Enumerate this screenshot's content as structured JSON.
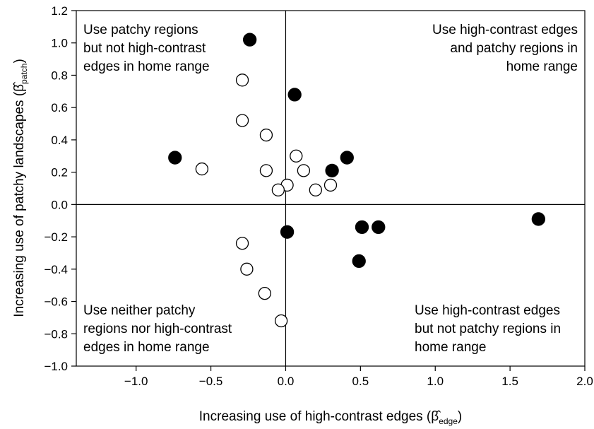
{
  "chart_data": {
    "type": "scatter",
    "title": "",
    "xlabel": {
      "prefix": "Increasing use of high-contrast edges (",
      "symbol": "β̂",
      "subscript": "edge",
      "suffix": ")"
    },
    "ylabel": {
      "prefix": "Increasing use of patchy landscapes (",
      "symbol": "β̂",
      "subscript": "patch",
      "suffix": ")"
    },
    "xlim": [
      -1.4,
      2.0
    ],
    "ylim": [
      -1.0,
      1.2
    ],
    "xticks": [
      -1.0,
      -0.5,
      0.0,
      0.5,
      1.0,
      1.5,
      2.0
    ],
    "xtick_labels": [
      "−1.0",
      "−0.5",
      "0.0",
      "0.5",
      "1.0",
      "1.5",
      "2.0"
    ],
    "yticks": [
      -1.0,
      -0.8,
      -0.6,
      -0.4,
      -0.2,
      0.0,
      0.2,
      0.4,
      0.6,
      0.8,
      1.0,
      1.2
    ],
    "ytick_labels": [
      "−1.0",
      "−0.8",
      "−0.6",
      "−0.4",
      "−0.2",
      "0.0",
      "0.2",
      "0.4",
      "0.6",
      "0.8",
      "1.0",
      "1.2"
    ],
    "reference_lines": {
      "x": 0,
      "y": 0
    },
    "grid": false,
    "series": [
      {
        "marker": "filled-circle",
        "color": "#000000",
        "points": [
          {
            "x": -0.24,
            "y": 1.02
          },
          {
            "x": 0.06,
            "y": 0.68
          },
          {
            "x": -0.74,
            "y": 0.29
          },
          {
            "x": 0.41,
            "y": 0.29
          },
          {
            "x": 0.31,
            "y": 0.21
          },
          {
            "x": 1.69,
            "y": -0.09
          },
          {
            "x": 0.51,
            "y": -0.14
          },
          {
            "x": 0.62,
            "y": -0.14
          },
          {
            "x": 0.01,
            "y": -0.17
          },
          {
            "x": 0.49,
            "y": -0.35
          }
        ]
      },
      {
        "marker": "open-circle",
        "color": "#000000",
        "points": [
          {
            "x": -0.29,
            "y": 0.77
          },
          {
            "x": -0.29,
            "y": 0.52
          },
          {
            "x": -0.13,
            "y": 0.43
          },
          {
            "x": 0.07,
            "y": 0.3
          },
          {
            "x": -0.56,
            "y": 0.22
          },
          {
            "x": -0.13,
            "y": 0.21
          },
          {
            "x": 0.12,
            "y": 0.21
          },
          {
            "x": 0.01,
            "y": 0.12
          },
          {
            "x": 0.3,
            "y": 0.12
          },
          {
            "x": -0.05,
            "y": 0.09
          },
          {
            "x": 0.2,
            "y": 0.09
          },
          {
            "x": -0.29,
            "y": -0.24
          },
          {
            "x": -0.26,
            "y": -0.4
          },
          {
            "x": -0.14,
            "y": -0.55
          },
          {
            "x": -0.03,
            "y": -0.72
          }
        ]
      }
    ],
    "annotations": [
      {
        "position": "top-left",
        "lines": [
          "Use patchy regions",
          "but not high-contrast",
          "edges in home range"
        ]
      },
      {
        "position": "top-right",
        "lines": [
          "Use high-contrast edges",
          "and patchy regions in",
          "home range"
        ]
      },
      {
        "position": "bottom-left",
        "lines": [
          "Use neither patchy",
          "regions nor high-contrast",
          "edges in home range"
        ]
      },
      {
        "position": "bottom-right",
        "lines": [
          "Use high-contrast edges",
          "but not patchy regions in",
          "home range"
        ]
      }
    ]
  }
}
